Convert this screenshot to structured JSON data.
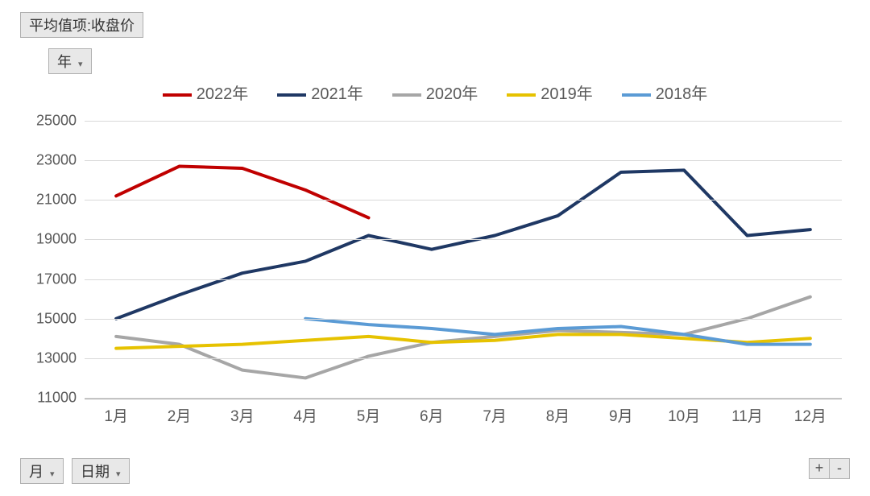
{
  "title_field": "平均值项:收盘价",
  "year_field": "年",
  "month_field": "月",
  "date_field": "日期",
  "plus_label": "+",
  "minus_label": "-",
  "chart": {
    "type": "line",
    "background_color": "#ffffff",
    "grid_color": "#d9d9d9",
    "axis_color": "#a6a6a6",
    "label_color": "#595959",
    "label_fontsize": 18,
    "legend_fontsize": 20,
    "line_width": 4,
    "ylim": [
      11000,
      25000
    ],
    "ytick_step": 2000,
    "yticks": [
      11000,
      13000,
      15000,
      17000,
      19000,
      21000,
      23000,
      25000
    ],
    "categories": [
      "1月",
      "2月",
      "3月",
      "4月",
      "5月",
      "6月",
      "7月",
      "8月",
      "9月",
      "10月",
      "11月",
      "12月"
    ],
    "series": [
      {
        "name": "2022年",
        "color": "#c00000",
        "values": [
          21200,
          22700,
          22600,
          21500,
          20100,
          null,
          null,
          null,
          null,
          null,
          null,
          null
        ]
      },
      {
        "name": "2021年",
        "color": "#1f3864",
        "values": [
          15000,
          16200,
          17300,
          17900,
          19200,
          18500,
          19200,
          20200,
          22400,
          22500,
          19200,
          19500
        ]
      },
      {
        "name": "2020年",
        "color": "#a6a6a6",
        "values": [
          14100,
          13700,
          12400,
          12000,
          13100,
          13800,
          14100,
          14400,
          14300,
          14200,
          15000,
          16100
        ]
      },
      {
        "name": "2019年",
        "color": "#e6c200",
        "values": [
          13500,
          13600,
          13700,
          13900,
          14100,
          13800,
          13900,
          14200,
          14200,
          14000,
          13800,
          14000
        ]
      },
      {
        "name": "2018年",
        "color": "#5b9bd5",
        "values": [
          null,
          null,
          null,
          15000,
          14700,
          14500,
          14200,
          14500,
          14600,
          14200,
          13700,
          13700
        ]
      }
    ]
  }
}
